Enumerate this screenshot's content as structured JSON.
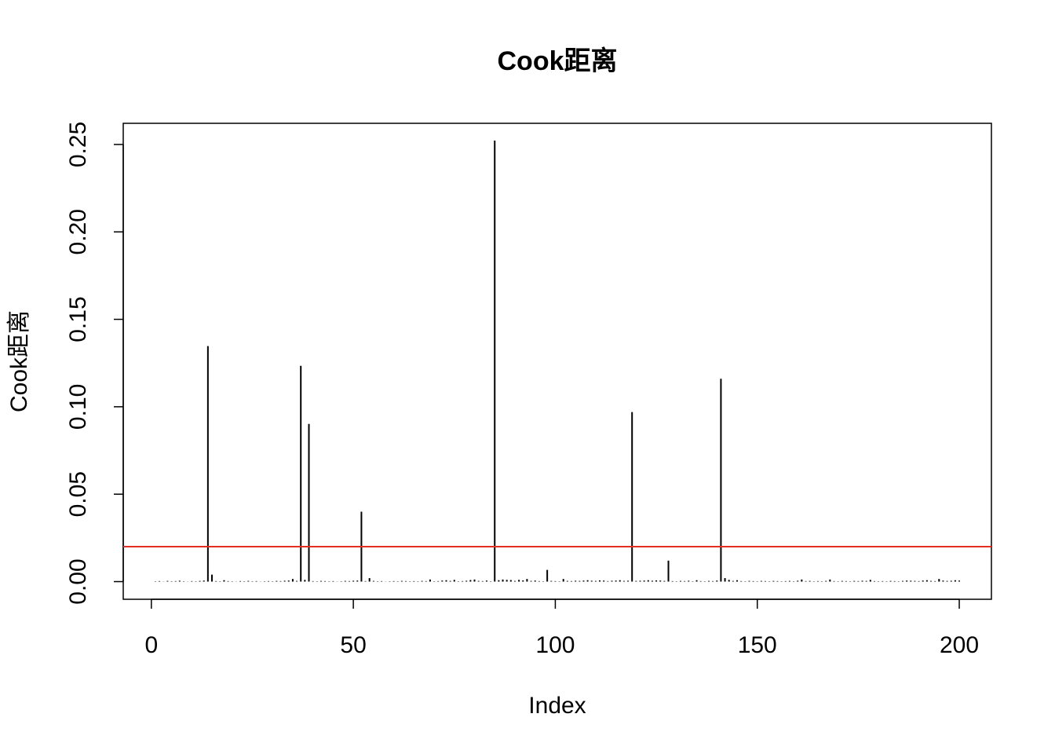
{
  "chart_data": {
    "type": "h",
    "title": "Cook距离",
    "xlabel": "Index",
    "ylabel": "Cook距离",
    "x": [
      1,
      2,
      3,
      4,
      5,
      6,
      7,
      8,
      9,
      10,
      11,
      12,
      13,
      14,
      15,
      16,
      17,
      18,
      19,
      20,
      21,
      22,
      23,
      24,
      25,
      26,
      27,
      28,
      29,
      30,
      31,
      32,
      33,
      34,
      35,
      36,
      37,
      38,
      39,
      40,
      41,
      42,
      43,
      44,
      45,
      46,
      47,
      48,
      49,
      50,
      51,
      52,
      53,
      54,
      55,
      56,
      57,
      58,
      59,
      60,
      61,
      62,
      63,
      64,
      65,
      66,
      67,
      68,
      69,
      70,
      71,
      72,
      73,
      74,
      75,
      76,
      77,
      78,
      79,
      80,
      81,
      82,
      83,
      84,
      85,
      86,
      87,
      88,
      89,
      90,
      91,
      92,
      93,
      94,
      95,
      96,
      97,
      98,
      99,
      100,
      101,
      102,
      103,
      104,
      105,
      106,
      107,
      108,
      109,
      110,
      111,
      112,
      113,
      114,
      115,
      116,
      117,
      118,
      119,
      120,
      121,
      122,
      123,
      124,
      125,
      126,
      127,
      128,
      129,
      130,
      131,
      132,
      133,
      134,
      135,
      136,
      137,
      138,
      139,
      140,
      141,
      142,
      143,
      144,
      145,
      146,
      147,
      148,
      149,
      150,
      151,
      152,
      153,
      154,
      155,
      156,
      157,
      158,
      159,
      160,
      161,
      162,
      163,
      164,
      165,
      166,
      167,
      168,
      169,
      170,
      171,
      172,
      173,
      174,
      175,
      176,
      177,
      178,
      179,
      180,
      181,
      182,
      183,
      184,
      185,
      186,
      187,
      188,
      189,
      190,
      191,
      192,
      193,
      194,
      195,
      196,
      197,
      198,
      199,
      200
    ],
    "values": [
      0.0002,
      0.0003,
      0.0001,
      0.0004,
      0.0002,
      0.0003,
      0.0005,
      0.0002,
      0.0001,
      0.0003,
      0.0002,
      0.0004,
      0.0006,
      0.1347,
      0.004,
      0.0003,
      0.0002,
      0.0008,
      0.0003,
      0.0002,
      0.0001,
      0.0003,
      0.0002,
      0.0004,
      0.0002,
      0.0003,
      0.0001,
      0.0002,
      0.0003,
      0.0002,
      0.0004,
      0.0003,
      0.0005,
      0.0006,
      0.0015,
      0.0004,
      0.1234,
      0.001,
      0.0902,
      0.0003,
      0.0002,
      0.0004,
      0.0003,
      0.0002,
      0.0003,
      0.0001,
      0.0002,
      0.0004,
      0.0003,
      0.0005,
      0.0006,
      0.04,
      0.0003,
      0.002,
      0.0004,
      0.0002,
      0.0003,
      0.0001,
      0.0002,
      0.0003,
      0.0002,
      0.0004,
      0.0003,
      0.0002,
      0.0003,
      0.0002,
      0.0004,
      0.0003,
      0.0012,
      0.0002,
      0.0003,
      0.0006,
      0.0008,
      0.0004,
      0.001,
      0.0002,
      0.0003,
      0.0005,
      0.0009,
      0.0012,
      0.0004,
      0.0003,
      0.0006,
      0.0002,
      0.2522,
      0.0008,
      0.0012,
      0.001,
      0.0009,
      0.0004,
      0.001,
      0.0007,
      0.0015,
      0.0004,
      0.0006,
      0.0003,
      0.0002,
      0.0067,
      0.0004,
      0.0003,
      0.0002,
      0.0015,
      0.0004,
      0.0003,
      0.0005,
      0.0004,
      0.0006,
      0.0008,
      0.0005,
      0.0004,
      0.0007,
      0.0006,
      0.0003,
      0.0005,
      0.0006,
      0.0008,
      0.0004,
      0.0005,
      0.097,
      0.0004,
      0.0005,
      0.0006,
      0.0008,
      0.0005,
      0.0007,
      0.0006,
      0.0004,
      0.012,
      0.0003,
      0.0002,
      0.0004,
      0.0003,
      0.0005,
      0.0002,
      0.0008,
      0.0003,
      0.0002,
      0.0004,
      0.0003,
      0.0006,
      0.116,
      0.002,
      0.001,
      0.0004,
      0.0008,
      0.0003,
      0.0002,
      0.0004,
      0.0003,
      0.0002,
      0.0004,
      0.0003,
      0.0002,
      0.0004,
      0.0003,
      0.0002,
      0.0003,
      0.0004,
      0.0002,
      0.0005,
      0.0012,
      0.0003,
      0.0004,
      0.0002,
      0.0003,
      0.0002,
      0.0004,
      0.0012,
      0.0003,
      0.0002,
      0.0004,
      0.0003,
      0.0002,
      0.0004,
      0.0003,
      0.0005,
      0.0004,
      0.001,
      0.0003,
      0.0002,
      0.0003,
      0.0002,
      0.0004,
      0.0003,
      0.0002,
      0.0004,
      0.0006,
      0.0005,
      0.0004,
      0.0003,
      0.0006,
      0.0008,
      0.0004,
      0.0003,
      0.0015,
      0.0006,
      0.0004,
      0.0005,
      0.0008,
      0.0006
    ],
    "color": "#000000",
    "xlim": [
      -6.96,
      207.96
    ],
    "ylim": [
      -0.0101,
      0.2621
    ],
    "xticks": [
      0,
      50,
      100,
      150,
      200
    ],
    "yticks": [
      {
        "value": 0,
        "label": "0.00"
      },
      {
        "value": 0.05,
        "label": "0.05"
      },
      {
        "value": 0.1,
        "label": "0.10"
      },
      {
        "value": 0.15,
        "label": "0.15"
      },
      {
        "value": 0.2,
        "label": "0.20"
      },
      {
        "value": 0.25,
        "label": "0.25"
      }
    ],
    "hline": 0.02,
    "hline_color": "#e0301e"
  }
}
